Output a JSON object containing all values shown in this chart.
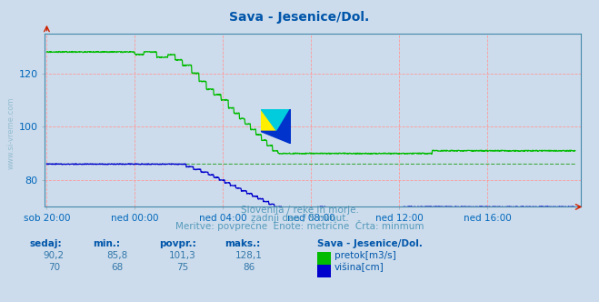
{
  "title": "Sava - Jesenice/Dol.",
  "title_color": "#0055aa",
  "bg_color": "#ccdcec",
  "plot_bg_color": "#ccdcec",
  "grid_color": "#ff9999",
  "xlabel_color": "#0066bb",
  "ylabel_color": "#0066bb",
  "x_tick_labels": [
    "sob 20:00",
    "ned 00:00",
    "ned 04:00",
    "ned 08:00",
    "ned 12:00",
    "ned 16:00"
  ],
  "x_tick_positions": [
    0,
    240,
    480,
    720,
    960,
    1200
  ],
  "ylim": [
    70,
    135
  ],
  "yticks": [
    80,
    100,
    120
  ],
  "total_points": 1440,
  "pretok_color": "#00bb00",
  "visina_color": "#0000cc",
  "avg_pretok_color": "#44aa44",
  "subtitle_color": "#5599bb",
  "subtitle1": "Slovenija / reke in morje.",
  "subtitle2": "zadnji dan / 5 minut.",
  "subtitle3": "Meritve: povprečne  Enote: metrične  Črta: minmum",
  "footer_label_color": "#0055aa",
  "footer_value_color": "#3377aa",
  "footer_station": "Sava - Jesenice/Dol.",
  "sedaj": "90,2",
  "min_pretok": "85,8",
  "povpr_pretok": "101,3",
  "maks_pretok": "128,1",
  "sedaj_v": "70",
  "min_v": "68",
  "povpr_v": "75",
  "maks_v": "86"
}
